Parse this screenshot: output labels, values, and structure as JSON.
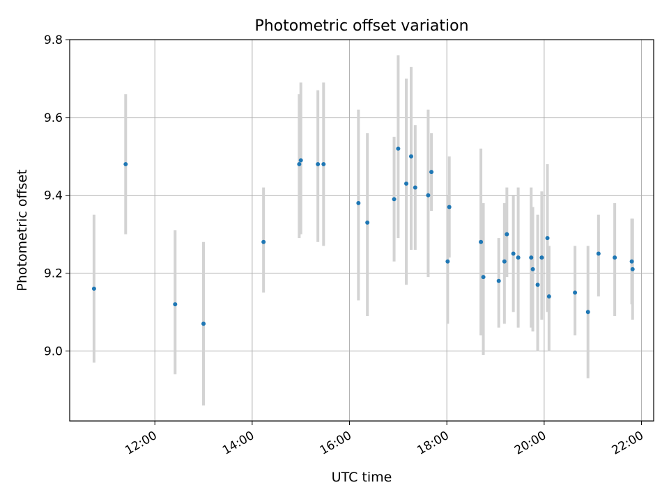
{
  "chart_data": {
    "type": "scatter",
    "title": "Photometric offset variation",
    "xlabel": "UTC time",
    "ylabel": "Photometric offset",
    "xlim": [
      "10:15",
      "22:15"
    ],
    "ylim": [
      8.82,
      9.8
    ],
    "x_ticks": [
      "12:00",
      "14:00",
      "16:00",
      "18:00",
      "20:00",
      "22:00"
    ],
    "y_ticks": [
      "9.0",
      "9.2",
      "9.4",
      "9.6",
      "9.8"
    ],
    "grid": true,
    "marker_color": "#1f77b4",
    "errorbar_color": "#d3d3d3",
    "points": [
      {
        "x": "10:45",
        "y": 9.16,
        "ylo": 8.97,
        "yhi": 9.35
      },
      {
        "x": "11:24",
        "y": 9.48,
        "ylo": 9.3,
        "yhi": 9.66
      },
      {
        "x": "12:25",
        "y": 9.12,
        "ylo": 8.94,
        "yhi": 9.31
      },
      {
        "x": "13:00",
        "y": 9.07,
        "ylo": 8.86,
        "yhi": 9.28
      },
      {
        "x": "14:14",
        "y": 9.28,
        "ylo": 9.15,
        "yhi": 9.42
      },
      {
        "x": "14:58",
        "y": 9.48,
        "ylo": 9.29,
        "yhi": 9.66
      },
      {
        "x": "15:00",
        "y": 9.49,
        "ylo": 9.3,
        "yhi": 9.69
      },
      {
        "x": "15:21",
        "y": 9.48,
        "ylo": 9.28,
        "yhi": 9.67
      },
      {
        "x": "15:28",
        "y": 9.48,
        "ylo": 9.27,
        "yhi": 9.69
      },
      {
        "x": "16:11",
        "y": 9.38,
        "ylo": 9.13,
        "yhi": 9.62
      },
      {
        "x": "16:22",
        "y": 9.33,
        "ylo": 9.09,
        "yhi": 9.56
      },
      {
        "x": "16:55",
        "y": 9.39,
        "ylo": 9.23,
        "yhi": 9.55
      },
      {
        "x": "17:00",
        "y": 9.52,
        "ylo": 9.29,
        "yhi": 9.76
      },
      {
        "x": "17:10",
        "y": 9.43,
        "ylo": 9.17,
        "yhi": 9.7
      },
      {
        "x": "17:16",
        "y": 9.5,
        "ylo": 9.26,
        "yhi": 9.73
      },
      {
        "x": "17:21",
        "y": 9.42,
        "ylo": 9.26,
        "yhi": 9.58
      },
      {
        "x": "17:37",
        "y": 9.4,
        "ylo": 9.19,
        "yhi": 9.62
      },
      {
        "x": "17:41",
        "y": 9.46,
        "ylo": 9.36,
        "yhi": 9.56
      },
      {
        "x": "18:03",
        "y": 9.37,
        "ylo": 9.24,
        "yhi": 9.5
      },
      {
        "x": "18:01",
        "y": 9.23,
        "ylo": 9.07,
        "yhi": 9.4
      },
      {
        "x": "18:42",
        "y": 9.28,
        "ylo": 9.04,
        "yhi": 9.52
      },
      {
        "x": "18:45",
        "y": 9.19,
        "ylo": 8.99,
        "yhi": 9.38
      },
      {
        "x": "19:04",
        "y": 9.18,
        "ylo": 9.06,
        "yhi": 9.29
      },
      {
        "x": "19:11",
        "y": 9.23,
        "ylo": 9.07,
        "yhi": 9.38
      },
      {
        "x": "19:14",
        "y": 9.3,
        "ylo": 9.19,
        "yhi": 9.42
      },
      {
        "x": "19:22",
        "y": 9.25,
        "ylo": 9.1,
        "yhi": 9.4
      },
      {
        "x": "19:28",
        "y": 9.24,
        "ylo": 9.06,
        "yhi": 9.42
      },
      {
        "x": "19:44",
        "y": 9.24,
        "ylo": 9.06,
        "yhi": 9.42
      },
      {
        "x": "19:46",
        "y": 9.21,
        "ylo": 9.05,
        "yhi": 9.37
      },
      {
        "x": "19:52",
        "y": 9.17,
        "ylo": 9.0,
        "yhi": 9.35
      },
      {
        "x": "19:57",
        "y": 9.24,
        "ylo": 9.08,
        "yhi": 9.41
      },
      {
        "x": "20:04",
        "y": 9.29,
        "ylo": 9.1,
        "yhi": 9.48
      },
      {
        "x": "20:06",
        "y": 9.14,
        "ylo": 9.0,
        "yhi": 9.27
      },
      {
        "x": "20:38",
        "y": 9.15,
        "ylo": 9.04,
        "yhi": 9.27
      },
      {
        "x": "20:54",
        "y": 9.1,
        "ylo": 8.93,
        "yhi": 9.27
      },
      {
        "x": "21:07",
        "y": 9.25,
        "ylo": 9.14,
        "yhi": 9.35
      },
      {
        "x": "21:27",
        "y": 9.24,
        "ylo": 9.09,
        "yhi": 9.38
      },
      {
        "x": "21:48",
        "y": 9.23,
        "ylo": 9.12,
        "yhi": 9.34
      },
      {
        "x": "21:49",
        "y": 9.21,
        "ylo": 9.08,
        "yhi": 9.34
      }
    ]
  }
}
